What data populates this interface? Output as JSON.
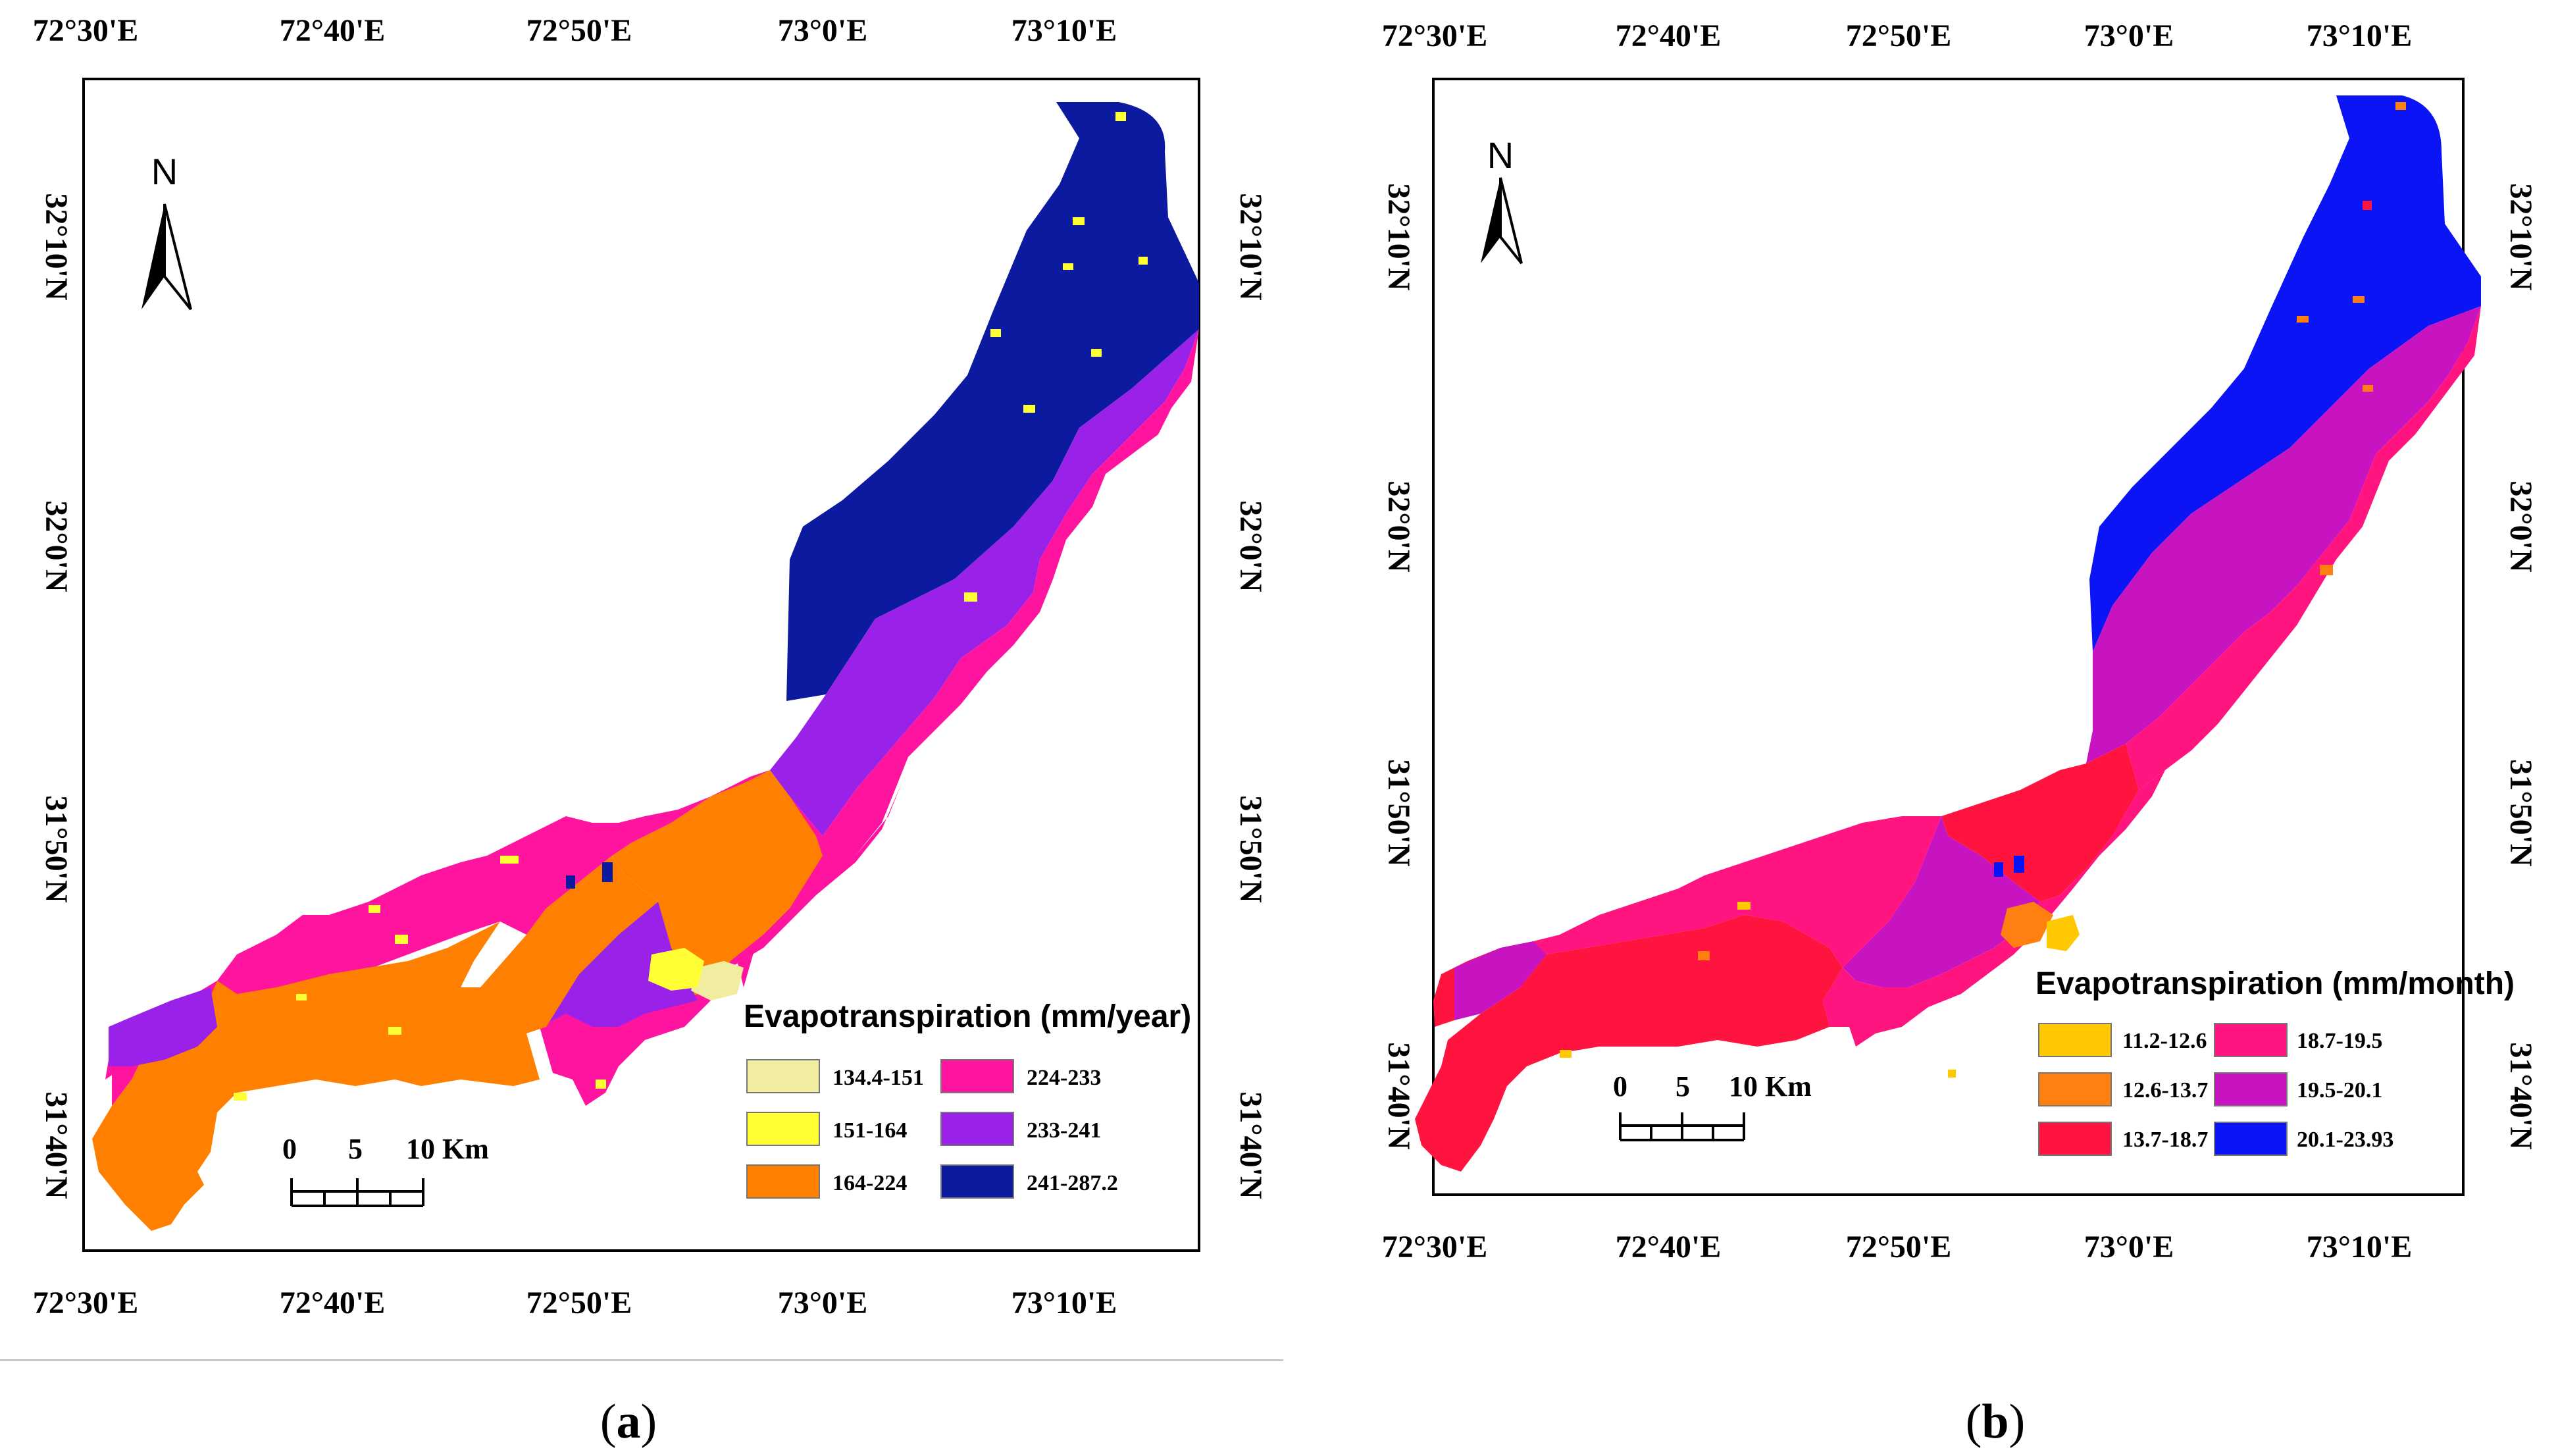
{
  "panels": [
    {
      "id": "a",
      "caption_open": "(",
      "caption_letter": "a",
      "caption_close": ")",
      "top_lon_labels": [
        "72°30'E",
        "72°40'E",
        "72°50'E",
        "73°0'E",
        "73°10'E"
      ],
      "bottom_lon_labels": [
        "72°30'E",
        "72°40'E",
        "72°50'E",
        "73°0'E",
        "73°10'E"
      ],
      "left_lat_labels": [
        "32°10'N",
        "32°0'N",
        "31°50'N",
        "31°40'N"
      ],
      "right_lat_labels": [
        "32°10'N",
        "32°0'N",
        "31°50'N",
        "31°40'N"
      ],
      "north": "N",
      "scale": {
        "labels": [
          "0",
          "5",
          "10 Km"
        ]
      },
      "legend": {
        "title": "Evapotranspiration (mm/year)",
        "classes": [
          {
            "label": "134.4-151",
            "color": "#f0eca0"
          },
          {
            "label": "151-164",
            "color": "#ffff33"
          },
          {
            "label": "164-224",
            "color": "#ff8000"
          },
          {
            "label": "224-233",
            "color": "#ff14a0"
          },
          {
            "label": "233-241",
            "color": "#9a22e8"
          },
          {
            "label": "241-287.2",
            "color": "#0c1aa0"
          }
        ]
      }
    },
    {
      "id": "b",
      "caption_open": "(",
      "caption_letter": "b",
      "caption_close": ")",
      "top_lon_labels": [
        "72°30'E",
        "72°40'E",
        "72°50'E",
        "73°0'E",
        "73°10'E"
      ],
      "bottom_lon_labels": [
        "72°30'E",
        "72°40'E",
        "72°50'E",
        "73°0'E",
        "73°10'E"
      ],
      "left_lat_labels": [
        "32°10'N",
        "32°0'N",
        "31°50'N",
        "31°40'N"
      ],
      "right_lat_labels": [
        "32°10'N",
        "32°0'N",
        "31°50'N",
        "31°40'N"
      ],
      "north": "N",
      "scale": {
        "labels": [
          "0",
          "5",
          "10 Km"
        ]
      },
      "legend": {
        "title": "Evapotranspiration (mm/month)",
        "classes": [
          {
            "label": "11.2-12.6",
            "color": "#ffc800"
          },
          {
            "label": "12.6-13.7",
            "color": "#ff8010"
          },
          {
            "label": "13.7-18.7",
            "color": "#ff1440"
          },
          {
            "label": "18.7-19.5",
            "color": "#ff1480"
          },
          {
            "label": "19.5-20.1",
            "color": "#c814c0"
          },
          {
            "label": "20.1-23.93",
            "color": "#0a14f5"
          }
        ]
      }
    }
  ]
}
